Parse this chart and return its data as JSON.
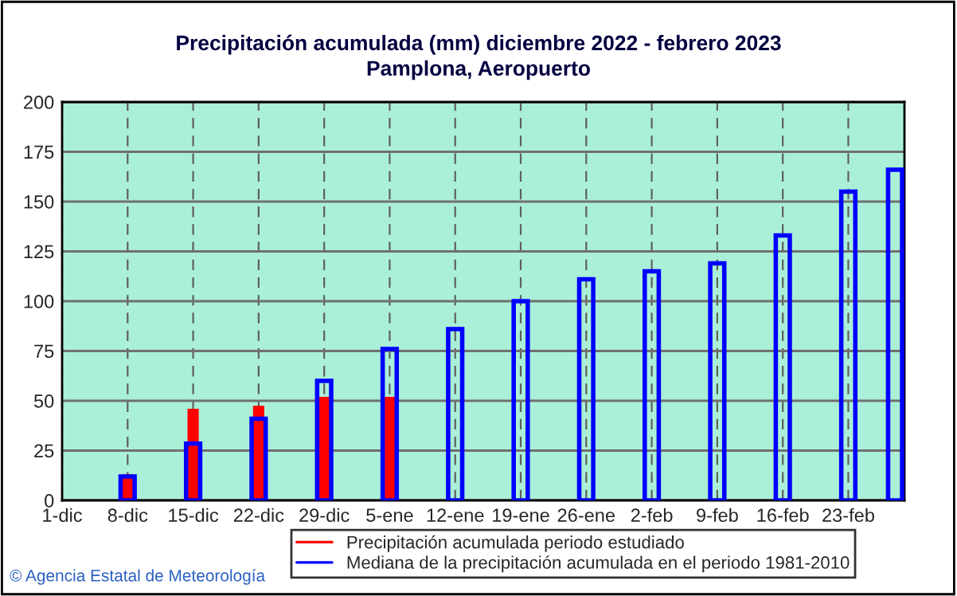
{
  "chart_data": {
    "type": "bar",
    "title": "Precipitación acumulada (mm) diciembre 2022 - febrero 2023",
    "subtitle": "Pamplona, Aeropuerto",
    "x": [
      "2022-12-08",
      "2022-12-15",
      "2022-12-22",
      "2022-12-29",
      "2023-01-05",
      "2023-01-12",
      "2023-01-19",
      "2023-01-26",
      "2023-02-02",
      "2023-02-09",
      "2023-02-16",
      "2023-02-23",
      "2023-02-28"
    ],
    "series": [
      {
        "name": "Precipitación acumulada periodo estudiado",
        "color": "#ff0000",
        "values": [
          13,
          46,
          47.5,
          52,
          52,
          null,
          null,
          null,
          null,
          null,
          null,
          null,
          null
        ]
      },
      {
        "name": "Mediana de la precipitación acumulada en el periodo 1981-2010",
        "color": "#0000ff",
        "values": [
          12,
          28.5,
          41,
          60,
          76,
          86,
          100,
          111,
          115,
          119,
          133,
          155,
          166
        ]
      }
    ],
    "xlim": [
      "2022-12-01",
      "2023-03-01"
    ],
    "xticks": [
      {
        "value": "2022-12-01",
        "label": "1-dic"
      },
      {
        "value": "2022-12-08",
        "label": "8-dic"
      },
      {
        "value": "2022-12-15",
        "label": "15-dic"
      },
      {
        "value": "2022-12-22",
        "label": "22-dic"
      },
      {
        "value": "2022-12-29",
        "label": "29-dic"
      },
      {
        "value": "2023-01-05",
        "label": "5-ene"
      },
      {
        "value": "2023-01-12",
        "label": "12-ene"
      },
      {
        "value": "2023-01-19",
        "label": "19-ene"
      },
      {
        "value": "2023-01-26",
        "label": "26-ene"
      },
      {
        "value": "2023-02-02",
        "label": "2-feb"
      },
      {
        "value": "2023-02-09",
        "label": "9-feb"
      },
      {
        "value": "2023-02-16",
        "label": "16-feb"
      },
      {
        "value": "2023-02-23",
        "label": "23-feb"
      }
    ],
    "ylim": [
      0,
      200
    ],
    "yticks": [
      0,
      25,
      50,
      75,
      100,
      125,
      150,
      175,
      200
    ],
    "grid": true,
    "legend": "bottom",
    "annotations": [
      "© Agencia Estatal de Meteorología"
    ]
  }
}
